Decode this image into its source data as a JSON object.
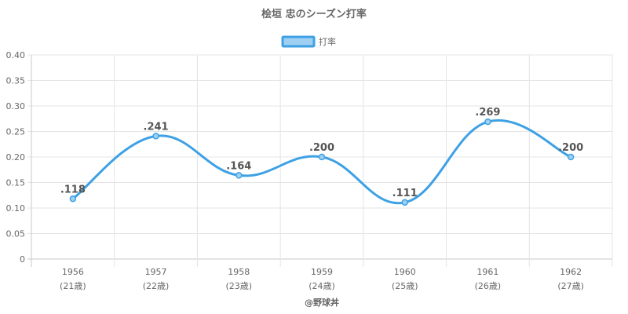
{
  "chart_data": {
    "type": "line",
    "title": "桧垣 忠のシーズン打率",
    "legend": {
      "label": "打率",
      "position": "top"
    },
    "categories": [
      "1956",
      "1957",
      "1958",
      "1959",
      "1960",
      "1961",
      "1962"
    ],
    "category_sublabels": [
      "(21歳)",
      "(22歳)",
      "(23歳)",
      "(24歳)",
      "(25歳)",
      "(26歳)",
      "(27歳)"
    ],
    "series": [
      {
        "name": "打率",
        "values": [
          0.118,
          0.241,
          0.164,
          0.2,
          0.111,
          0.269,
          0.2
        ]
      }
    ],
    "data_labels": [
      ".118",
      ".241",
      ".164",
      ".200",
      ".111",
      ".269",
      ".200"
    ],
    "y_ticks": [
      "0",
      "0.05",
      "0.10",
      "0.15",
      "0.20",
      "0.25",
      "0.30",
      "0.35",
      "0.40"
    ],
    "ylim": [
      0,
      0.4
    ],
    "grid": true,
    "colors": {
      "line": "#3ea1e4",
      "fill": "#9fd0f2",
      "grid": "#e5e5e5",
      "axis": "#c8c8c8"
    },
    "credit": "@野球丼"
  }
}
